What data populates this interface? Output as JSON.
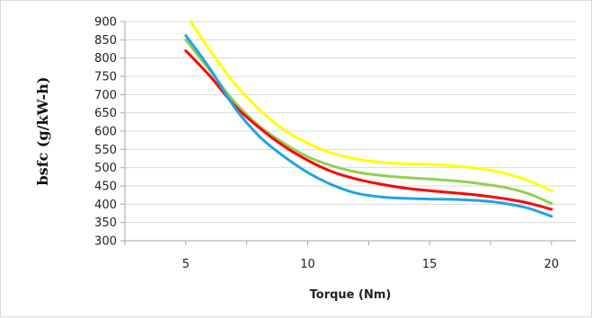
{
  "chart_data": {
    "type": "line",
    "title": "",
    "xlabel": "Torque (Nm)",
    "ylabel": "bsfc (g/kW-h)",
    "xlim": [
      2.5,
      21
    ],
    "ylim": [
      300,
      900
    ],
    "xticks": [
      5,
      10,
      15,
      20
    ],
    "yticks": [
      300,
      350,
      400,
      450,
      500,
      550,
      600,
      650,
      700,
      750,
      800,
      850,
      900
    ],
    "grid": "horizontal",
    "legend": "none",
    "series": [
      {
        "color": "#ffff00",
        "x": [
          5.2,
          6,
          7,
          8,
          9,
          10,
          11,
          12,
          13,
          14,
          15,
          16,
          17,
          18,
          19,
          20
        ],
        "y": [
          900,
          820,
          730,
          660,
          605,
          567,
          540,
          524,
          515,
          511,
          509,
          505,
          498,
          486,
          466,
          437
        ]
      },
      {
        "color": "#92d050",
        "x": [
          5,
          6,
          7,
          8,
          9,
          10,
          11,
          12,
          13,
          14,
          15,
          16,
          17,
          18,
          19,
          20
        ],
        "y": [
          850,
          765,
          680,
          615,
          568,
          530,
          505,
          488,
          479,
          473,
          469,
          464,
          457,
          447,
          430,
          402
        ]
      },
      {
        "color": "#ff0000",
        "x": [
          5,
          6,
          7,
          8,
          9,
          10,
          11,
          12,
          13,
          14,
          15,
          16,
          17,
          18,
          19,
          20
        ],
        "y": [
          820,
          750,
          670,
          610,
          560,
          520,
          489,
          469,
          455,
          444,
          437,
          431,
          425,
          416,
          404,
          386
        ]
      },
      {
        "color": "#1fa3e8",
        "x": [
          5,
          6,
          7,
          8,
          9,
          10,
          11,
          12,
          13,
          14,
          15,
          16,
          17,
          18,
          19,
          20
        ],
        "y": [
          862,
          770,
          665,
          587,
          532,
          487,
          453,
          430,
          420,
          416,
          414,
          413,
          410,
          403,
          390,
          367
        ]
      }
    ]
  }
}
